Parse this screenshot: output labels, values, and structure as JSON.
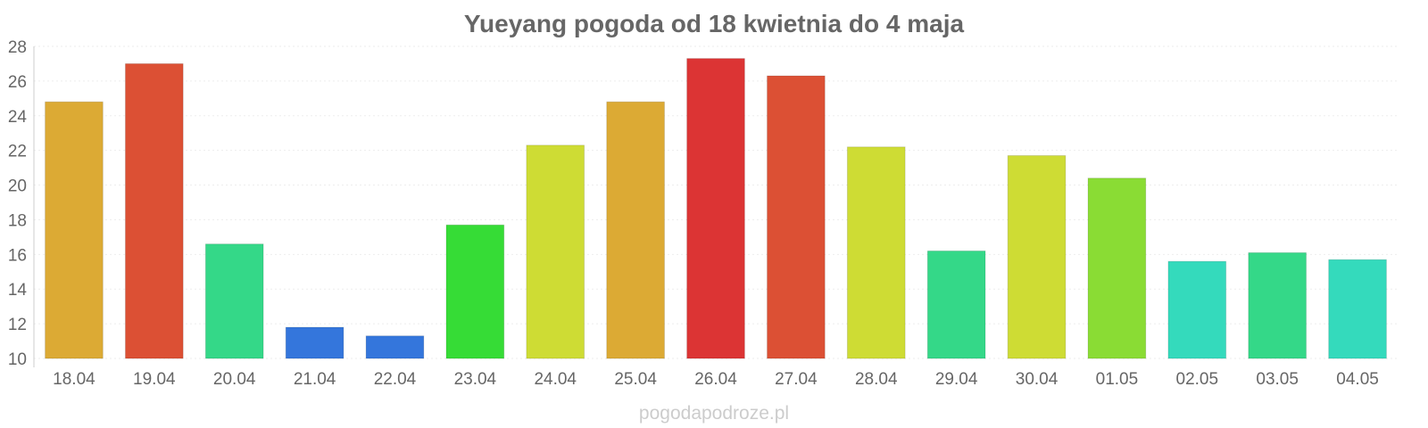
{
  "chart_data": {
    "type": "bar",
    "title": "Yueyang pogoda od 18 kwietnia do 4 maja",
    "xlabel": "",
    "ylabel": "",
    "categories": [
      "18.04",
      "19.04",
      "20.04",
      "21.04",
      "22.04",
      "23.04",
      "24.04",
      "25.04",
      "26.04",
      "27.04",
      "28.04",
      "29.04",
      "30.04",
      "01.05",
      "02.05",
      "03.05",
      "04.05"
    ],
    "values": [
      24.8,
      27.0,
      16.6,
      11.8,
      11.3,
      17.7,
      22.3,
      24.8,
      27.3,
      26.3,
      22.2,
      16.2,
      21.7,
      20.4,
      15.6,
      16.1,
      15.7
    ],
    "colors": [
      "#dcaa34",
      "#dc5034",
      "#34d888",
      "#3476dc",
      "#3476dc",
      "#36dc36",
      "#cedc34",
      "#dcaa34",
      "#dc3434",
      "#dc5034",
      "#cedc34",
      "#34d888",
      "#cedc34",
      "#8adc34",
      "#34dabc",
      "#34d888",
      "#34dabc"
    ],
    "ylim": [
      10,
      28
    ],
    "yticks": [
      10,
      12,
      14,
      16,
      18,
      20,
      22,
      24,
      26,
      28
    ],
    "grid": true,
    "legend": "none"
  },
  "footer": {
    "watermark": "pogodapodroze.pl"
  }
}
